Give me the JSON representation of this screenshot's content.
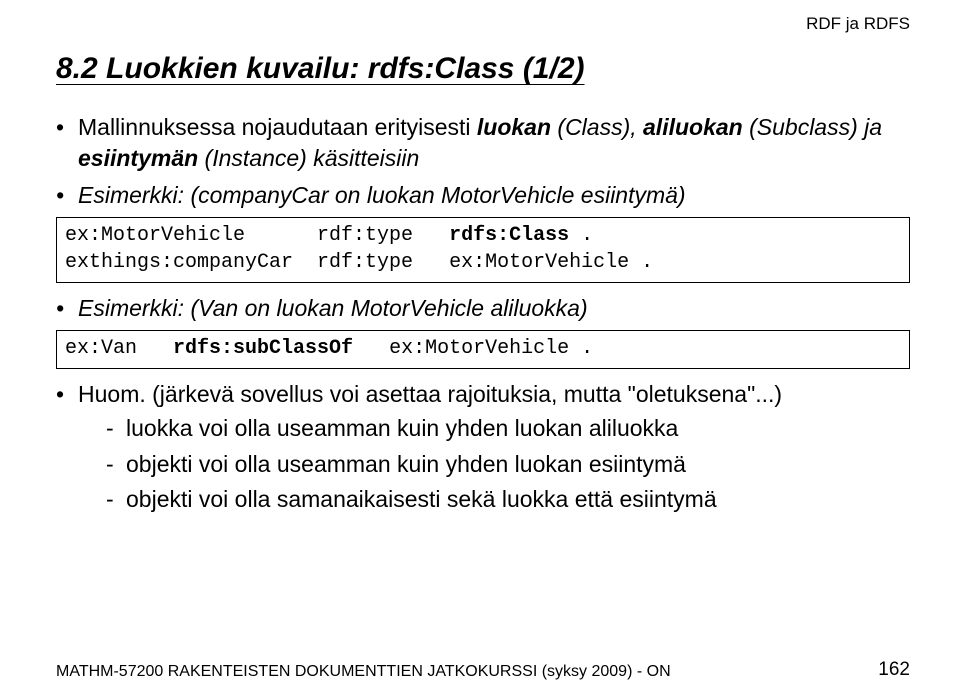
{
  "header": {
    "topRight": "RDF ja RDFS"
  },
  "title": "8.2 Luokkien kuvailu: rdfs:Class (1/2)",
  "bullet1": {
    "t1": "Mallinnuksessa nojaudutaan erityisesti ",
    "w1": "luokan",
    "t2": " (Class), ",
    "w2": "aliluokan",
    "t3": " (Subclass) ja ",
    "w3": "esiintymän",
    "t4": " (Instance) käsitteisiin"
  },
  "bullet2": "Esimerkki: (companyCar on luokan MotorVehicle esiintymä)",
  "code1": {
    "l1a": "ex:MotorVehicle      rdf:type   ",
    "l1b": "rdfs:Class",
    "l1c": " .",
    "l2": "exthings:companyCar  rdf:type   ex:MotorVehicle ."
  },
  "bullet3": "Esimerkki: (Van on luokan MotorVehicle aliluokka)",
  "code2": {
    "a": "ex:Van   ",
    "b": "rdfs:subClassOf",
    "c": "   ex:MotorVehicle ."
  },
  "bullet4": "Huom. (järkevä sovellus voi asettaa rajoituksia, mutta \"oletuksena\"...)",
  "dashes": {
    "d1": "luokka voi olla useamman kuin yhden luokan aliluokka",
    "d2": "objekti voi olla useamman kuin yhden luokan esiintymä",
    "d3": "objekti voi olla samanaikaisesti sekä luokka että esiintymä"
  },
  "footer": "MATHM-57200 RAKENTEISTEN DOKUMENTTIEN JATKOKURSSI (syksy 2009) - ON",
  "pageNumber": "162",
  "colors": {
    "text": "#000000",
    "bg": "#ffffff",
    "border": "#000000"
  }
}
